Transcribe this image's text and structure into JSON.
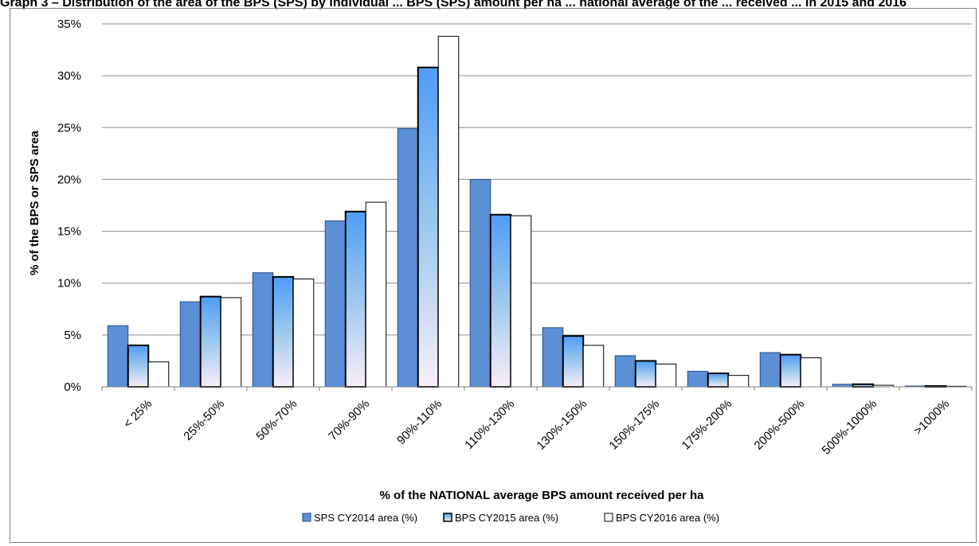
{
  "header": {
    "title": "Graph 3 – Distribution of the area of the BPS (SPS) by individual ... BPS (SPS) amount per ha ... national average of the ... received ... in 2015 and 2016"
  },
  "chart_data": {
    "type": "bar",
    "xlabel": "% of the NATIONAL average BPS amount received per ha",
    "ylabel": "% of the BPS or SPS area",
    "categories": [
      "< 25%",
      "25%-50%",
      "50%-70%",
      "70%-90%",
      "90%-110%",
      "110%-130%",
      "130%-150%",
      "150%-175%",
      "175%-200%",
      "200%-500%",
      "500%-1000%",
      ">1000%"
    ],
    "series": [
      {
        "name": "SPS CY2014 area (%)",
        "values": [
          5.9,
          8.2,
          11.0,
          16.0,
          24.9,
          20.0,
          5.7,
          3.0,
          1.5,
          3.3,
          0.25,
          0.08
        ]
      },
      {
        "name": "BPS CY2015 area (%)",
        "values": [
          4.0,
          8.7,
          10.6,
          16.9,
          30.8,
          16.6,
          4.9,
          2.5,
          1.3,
          3.1,
          0.25,
          0.08
        ]
      },
      {
        "name": "BPS CY2016 area (%)",
        "values": [
          2.4,
          8.6,
          10.4,
          17.8,
          33.8,
          16.5,
          4.0,
          2.2,
          1.1,
          2.8,
          0.15,
          0.05
        ]
      }
    ],
    "ylim": [
      0,
      35
    ],
    "yticks": [
      "0%",
      "5%",
      "10%",
      "15%",
      "20%",
      "25%",
      "30%",
      "35%"
    ],
    "grid": true,
    "legend_position": "bottom",
    "colors": [
      "#5b8fd6",
      "#5aa0f0",
      "#ffffff"
    ]
  }
}
